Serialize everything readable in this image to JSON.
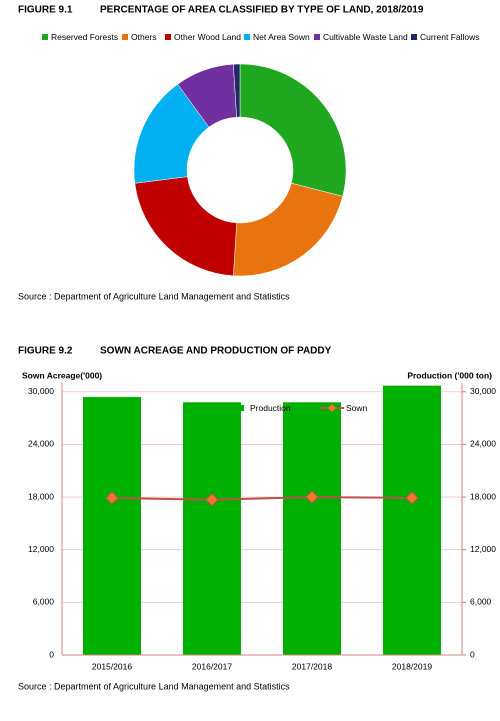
{
  "figures": [
    {
      "number": "FIGURE 9.1",
      "source": "Source : Department of Agriculture Land Management and Statistics"
    },
    {
      "number": "FIGURE 9.2",
      "source": "Source : Department of Agriculture Land Management and Statistics"
    }
  ],
  "chart_data": [
    {
      "type": "pie",
      "title": "PERCENTAGE OF AREA CLASSIFIED BY TYPE OF LAND, 2018/2019",
      "categories": [
        "Reserved Forests",
        "Others",
        "Other Wood Land",
        "Net Area Sown",
        "Cultivable Waste  Land",
        "Current Fallows"
      ],
      "values": [
        29,
        22,
        22,
        17,
        9,
        1
      ],
      "colors": [
        "#1fa81f",
        "#e8730f",
        "#c00000",
        "#00b0f0",
        "#7030a0",
        "#1f2a60"
      ],
      "legend": "top"
    },
    {
      "type": "bar-line",
      "title": "SOWN ACREAGE AND PRODUCTION OF PADDY",
      "ylabel": "Sown Acreage('000)",
      "y2label": "Production ('000 ton)",
      "categories": [
        "2015/2016",
        "2016/2017",
        "2017/2018",
        "2018/2019"
      ],
      "series": [
        {
          "name": "Production",
          "type": "bar",
          "color": "#00b000",
          "axis": "y2",
          "values": [
            29400,
            28800,
            28800,
            30700
          ]
        },
        {
          "name": "Sown",
          "type": "line",
          "color": "#c0504d",
          "marker_color": "#f07828",
          "values": [
            17900,
            17700,
            18000,
            17900
          ]
        }
      ],
      "ylim": [
        0,
        31000
      ],
      "yticks": [
        0,
        {
          "value": 6000,
          "label": "6,000"
        },
        {
          "value": 12000,
          "label": "12,000"
        },
        {
          "value": 18000,
          "label": "18,000"
        },
        {
          "value": 24000,
          "label": "24,000"
        },
        {
          "value": 30000,
          "label": "30,000"
        }
      ],
      "y2lim": [
        0,
        31000
      ],
      "y2ticks": [
        0,
        {
          "value": 6000,
          "label": "6,000"
        },
        {
          "value": 12000,
          "label": "12,000"
        },
        {
          "value": 18000,
          "label": "18,000"
        },
        {
          "value": 24000,
          "label": "24,000"
        },
        {
          "value": 30000,
          "label": "30,000"
        }
      ],
      "grid": true,
      "legend": "top"
    }
  ]
}
